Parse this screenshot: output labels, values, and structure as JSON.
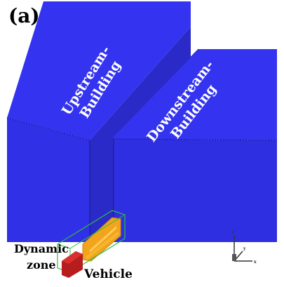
{
  "figure": {
    "panel_label": "(a)",
    "buildings": {
      "upstream": {
        "line1": "Upstream-",
        "line2": "Building"
      },
      "downstream": {
        "line1": "Downstream-",
        "line2": "Building"
      }
    },
    "dynamic_zone": {
      "line1": "Dynamic",
      "line2": "zone"
    },
    "vehicle": "Vehicle",
    "axis_labels": {
      "vertical": "z",
      "depth": "y",
      "horizontal": "x"
    },
    "colors": {
      "building_top": "#3030ee",
      "building_face": "#2f2fe2",
      "building_side": "#2626b8",
      "vehicle": "#f2a51c",
      "dynamic_zone_block": "#b81d1d",
      "zone_outline": "#2fbf3a"
    }
  }
}
